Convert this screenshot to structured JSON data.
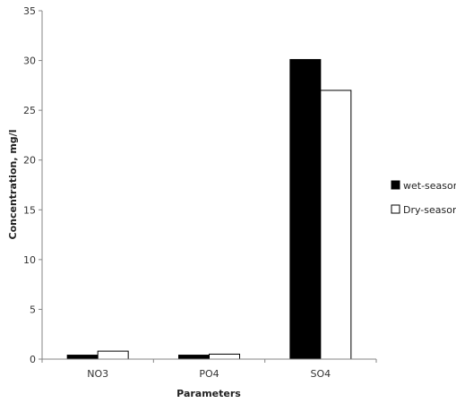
{
  "chart_data": {
    "type": "bar",
    "title": "",
    "xlabel": "Parameters",
    "ylabel": "Concentration, mg/l",
    "categories": [
      "NO3",
      "PO4",
      "SO4"
    ],
    "ylim": [
      0,
      35
    ],
    "yticks": [
      0,
      5,
      10,
      15,
      20,
      25,
      30,
      35
    ],
    "grid": false,
    "legend_position": "right",
    "series": [
      {
        "name": "wet-season",
        "values": [
          0.4,
          0.4,
          30.1
        ],
        "color": "#000000"
      },
      {
        "name": "Dry-season",
        "values": [
          0.8,
          0.5,
          27.0
        ],
        "color": "#ffffff"
      }
    ]
  }
}
